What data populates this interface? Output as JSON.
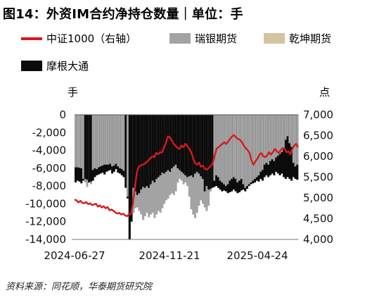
{
  "title": "图14：外资IM合约净持仓数量｜单位：手",
  "source": "资料来源：同花顺，华泰期货研究院",
  "colors": {
    "line": "#d7191f",
    "ruiyin": "#a3a3a3",
    "qiankun": "#d3c3a0",
    "moken": "#0b0b0b"
  },
  "chart_data": {
    "type": "bar+line",
    "left_unit": "手",
    "right_unit": "点",
    "left_axis": {
      "ylim": [
        -14000,
        0
      ],
      "ticks": [
        "0",
        "-2,000",
        "-4,000",
        "-6,000",
        "-8,000",
        "-10,000",
        "-12,000",
        "-14,000"
      ]
    },
    "right_axis": {
      "ylim": [
        4000,
        7000
      ],
      "ticks": [
        "7,000",
        "6,500",
        "6,000",
        "5,500",
        "5,000",
        "4,500",
        "4,000"
      ]
    },
    "x_ticks": [
      "2024-06-27",
      "2024-11-21",
      "2025-04-24"
    ],
    "legend": [
      "中证1000（右轴）",
      "瑞银期货",
      "乾坤期货",
      "摩根大通"
    ],
    "series": [
      {
        "name": "中证1000（右轴）",
        "type": "line",
        "axis": "right",
        "values": [
          4960,
          4940,
          4890,
          4930,
          4880,
          4870,
          4900,
          4850,
          4870,
          4830,
          4840,
          4860,
          4790,
          4820,
          4770,
          4800,
          4750,
          4780,
          4700,
          4720,
          4690,
          4650,
          4620,
          4640,
          4600,
          4620,
          4580,
          4560,
          4600,
          4610,
          4850,
          5250,
          5600,
          5750,
          5780,
          5800,
          5820,
          5860,
          5900,
          5960,
          6000,
          5980,
          6080,
          6050,
          6100,
          6090,
          6220,
          6320,
          6480,
          6460,
          6380,
          6300,
          6250,
          6200,
          6180,
          6260,
          6220,
          6300,
          6250,
          6180,
          6100,
          5950,
          5830,
          5800,
          5850,
          5750,
          5780,
          5700,
          5680,
          5720,
          5770,
          5820,
          6000,
          6180,
          6220,
          6260,
          6300,
          6340,
          6300,
          6360,
          6420,
          6480,
          6510,
          6460,
          6420,
          6400,
          6350,
          6260,
          6200,
          6150,
          6080,
          5900,
          5800,
          5880,
          5940,
          6030,
          6080,
          6000,
          5980,
          6020,
          6100,
          6040,
          6100,
          6180,
          6120,
          6080,
          6150,
          6200,
          6180,
          6100,
          6120,
          6050,
          6180,
          6260,
          6300,
          6220
        ]
      },
      {
        "name": "瑞银期货",
        "type": "bar",
        "axis": "left",
        "values": [
          -5900,
          -5900,
          -5950,
          -6000,
          -7200,
          -7600,
          -8100,
          -7600,
          -7800,
          -6200,
          -6000,
          -6100,
          -5900,
          -5800,
          -5700,
          -5600,
          -5600,
          -5600,
          -5500,
          -5800,
          -5700,
          -5500,
          -5800,
          -6000,
          -6100,
          -6300,
          -8200,
          -9200,
          -14000,
          -12000,
          -11000,
          -10500,
          -10400,
          -10800,
          -11200,
          -11800,
          -11400,
          -11000,
          -11500,
          -11200,
          -11000,
          -11600,
          -11200,
          -10800,
          -11000,
          -10500,
          -10000,
          -9600,
          -9400,
          -9000,
          -8800,
          -9000,
          -8600,
          -7600,
          -7200,
          -7400,
          -7800,
          -7600,
          -8000,
          -9200,
          -10600,
          -11200,
          -11600,
          -11000,
          -10200,
          -9600,
          -10000,
          -10400,
          -10800,
          -10200,
          -8600,
          -8200,
          -7400,
          -6800,
          -7000,
          -7400,
          -7600,
          -7800,
          -8000,
          -7800,
          -7400,
          -7200,
          -7000,
          -7200,
          -7600,
          -7400,
          -7200,
          -7800,
          -8200,
          -8000,
          -7800,
          -7600,
          -7400,
          -7200,
          -7000,
          -6800,
          -6400,
          -6200,
          -5600,
          -5400,
          -5600,
          -5200,
          -5000,
          -5200,
          -4800,
          -4600,
          -4400,
          -4200,
          -3800,
          -2800,
          -2400,
          -3200,
          -3600,
          -5400,
          -5800,
          -5600
        ]
      },
      {
        "name": "乾坤期货",
        "type": "bar",
        "axis": "left",
        "values": []
      },
      {
        "name": "摩根大通",
        "type": "bar",
        "axis": "left",
        "values": [
          -7600,
          -7400,
          -7500,
          -7700,
          -7400,
          -7200,
          -7300,
          -7600,
          -7500,
          -7400,
          -7000,
          -6800,
          -6700,
          -6600,
          -6500,
          -6700,
          -6400,
          -6300,
          -6200,
          -6600,
          -6400,
          -6100,
          -6500,
          -6600,
          -6800,
          -7000,
          -8200,
          -9400,
          -14000,
          -12000,
          -8200,
          -8600,
          -9000,
          -8800,
          -8400,
          -8100,
          -8200,
          -8000,
          -8200,
          -7800,
          -7400,
          -7600,
          -7200,
          -7000,
          -6800,
          -6500,
          -6600,
          -6400,
          -6200,
          -6400,
          -6000,
          -5800,
          -5600,
          -6000,
          -6200,
          -6400,
          -6600,
          -6800,
          -7000,
          -6900,
          -6800,
          -7000,
          -6600,
          -6400,
          -6600,
          -6900,
          -7200,
          -8600,
          -8000,
          -8400,
          -8300,
          -8200,
          -8100,
          -8000,
          -8200,
          -8400,
          -8600,
          -8500,
          -8600,
          -8800,
          -8700,
          -8600,
          -8400,
          -8600,
          -8800,
          -8700,
          -8500,
          -8400,
          -8600,
          -8300,
          -8000,
          -7800,
          -7700,
          -7600,
          -7400,
          -7500,
          -7200,
          -7400,
          -7000,
          -6800,
          -7000,
          -6800,
          -6600,
          -6800,
          -6400,
          -6600,
          -6800,
          -6600,
          -7000,
          -7200,
          -7000,
          -7200,
          -7400,
          -7000,
          -7200,
          -7300
        ]
      }
    ]
  }
}
